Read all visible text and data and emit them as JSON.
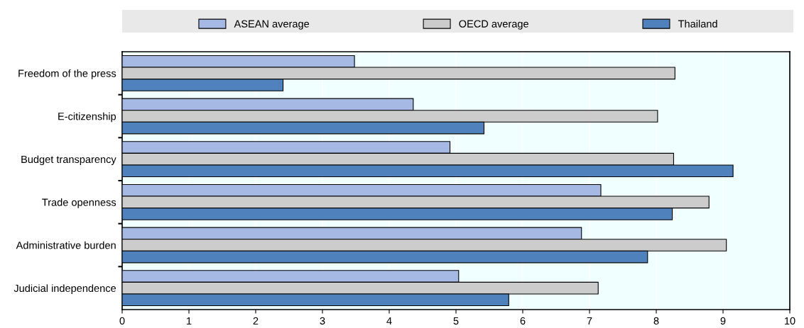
{
  "chart_data": {
    "type": "bar",
    "orientation": "horizontal",
    "categories": [
      "Freedom of the press",
      "E-citizenship",
      "Budget transparency",
      "Trade openness",
      "Administrative burden",
      "Judicial independence"
    ],
    "series": [
      {
        "name": "ASEAN average",
        "color": "#a6b8e4",
        "values": [
          3.48,
          4.36,
          4.91,
          7.17,
          6.88,
          5.04
        ]
      },
      {
        "name": "OECD average",
        "color": "#cccccc",
        "values": [
          8.28,
          8.02,
          8.26,
          8.79,
          9.05,
          7.13
        ]
      },
      {
        "name": "Thailand",
        "color": "#4f81bd",
        "values": [
          2.41,
          5.42,
          9.15,
          8.24,
          7.87,
          5.79
        ]
      }
    ],
    "xlim": [
      0,
      10
    ],
    "xticks": [
      0,
      1,
      2,
      3,
      4,
      5,
      6,
      7,
      8,
      9,
      10
    ],
    "grid": "x",
    "legend": "top"
  }
}
